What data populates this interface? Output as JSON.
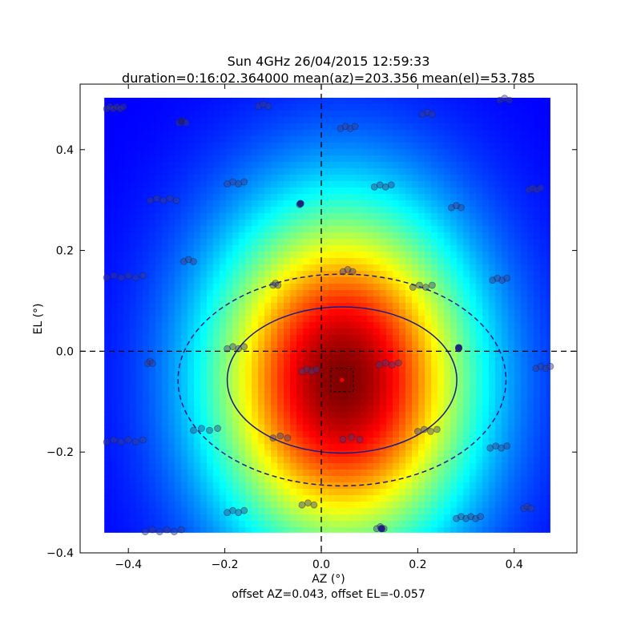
{
  "chart_data": {
    "type": "heatmap",
    "title_line1": "Sun 4GHz 26/04/2015 12:59:33",
    "title_line2": "duration=0:16:02.364000 mean(az)=203.356 mean(el)=53.785",
    "xlabel": "AZ (°)",
    "ylabel": "EL (°)",
    "footer": "offset AZ=0.043, offset EL=-0.057",
    "xlim": [
      -0.5,
      0.53
    ],
    "ylim": [
      -0.4,
      0.53
    ],
    "xticks": [
      -0.4,
      -0.2,
      0.0,
      0.2,
      0.4
    ],
    "xtick_labels": [
      "−0.4",
      "−0.2",
      "0.0",
      "0.2",
      "0.4"
    ],
    "yticks": [
      -0.4,
      -0.2,
      0.0,
      0.2,
      0.4
    ],
    "ytick_labels": [
      "−0.4",
      "−0.2",
      "0.0",
      "0.2",
      "0.4"
    ],
    "map_extent": {
      "x": [
        -0.45,
        0.475
      ],
      "y": [
        -0.36,
        0.503
      ]
    },
    "center": {
      "az": 0.043,
      "el": -0.057
    },
    "sigma": {
      "az": 0.19,
      "el": 0.24
    },
    "ellipse_inner": {
      "cx": 0.043,
      "cy": -0.057,
      "rx": 0.238,
      "ry": 0.145
    },
    "ellipse_outer": {
      "cx": 0.043,
      "cy": -0.057,
      "rx": 0.34,
      "ry": 0.21
    },
    "center_box": {
      "x": [
        0.02,
        0.066
      ],
      "y": [
        -0.08,
        -0.034
      ]
    },
    "colors": {
      "outline": "#1a1a8c",
      "marker": "#ff0000",
      "point": "#3a3a8a"
    },
    "scan_points": [
      {
        "x0": -0.445,
        "x1": -0.41,
        "y": 0.483,
        "n": 6
      },
      {
        "x0": -0.295,
        "x1": -0.28,
        "y": 0.455,
        "n": 3
      },
      {
        "x0": -0.13,
        "x1": -0.11,
        "y": 0.488,
        "n": 3
      },
      {
        "x0": 0.04,
        "x1": 0.07,
        "y": 0.444,
        "n": 4
      },
      {
        "x0": 0.21,
        "x1": 0.23,
        "y": 0.472,
        "n": 3
      },
      {
        "x0": 0.37,
        "x1": 0.39,
        "y": 0.5,
        "n": 3
      },
      {
        "x0": -0.355,
        "x1": -0.3,
        "y": 0.301,
        "n": 5
      },
      {
        "x0": -0.195,
        "x1": -0.16,
        "y": 0.334,
        "n": 4
      },
      {
        "x0": -0.045,
        "x1": -0.04,
        "y": 0.293,
        "n": 1
      },
      {
        "x0": 0.11,
        "x1": 0.145,
        "y": 0.328,
        "n": 4
      },
      {
        "x0": 0.27,
        "x1": 0.29,
        "y": 0.287,
        "n": 3
      },
      {
        "x0": 0.43,
        "x1": 0.455,
        "y": 0.322,
        "n": 4
      },
      {
        "x0": -0.445,
        "x1": -0.37,
        "y": 0.148,
        "n": 6
      },
      {
        "x0": -0.285,
        "x1": -0.265,
        "y": 0.18,
        "n": 3
      },
      {
        "x0": -0.1,
        "x1": -0.09,
        "y": 0.133,
        "n": 3
      },
      {
        "x0": 0.045,
        "x1": 0.065,
        "y": 0.16,
        "n": 3
      },
      {
        "x0": 0.19,
        "x1": 0.23,
        "y": 0.129,
        "n": 4
      },
      {
        "x0": 0.355,
        "x1": 0.385,
        "y": 0.143,
        "n": 4
      },
      {
        "x0": -0.195,
        "x1": -0.16,
        "y": 0.007,
        "n": 4
      },
      {
        "x0": 0.285,
        "x1": 0.285,
        "y": 0.007,
        "n": 1
      },
      {
        "x0": -0.36,
        "x1": -0.35,
        "y": -0.022,
        "n": 3
      },
      {
        "x0": -0.04,
        "x1": -0.01,
        "y": -0.038,
        "n": 4
      },
      {
        "x0": 0.12,
        "x1": 0.16,
        "y": -0.025,
        "n": 4
      },
      {
        "x0": 0.445,
        "x1": 0.475,
        "y": -0.032,
        "n": 4
      },
      {
        "x0": -0.265,
        "x1": -0.215,
        "y": -0.155,
        "n": 4
      },
      {
        "x0": -0.1,
        "x1": -0.07,
        "y": -0.17,
        "n": 3
      },
      {
        "x0": 0.045,
        "x1": 0.08,
        "y": -0.173,
        "n": 3
      },
      {
        "x0": 0.2,
        "x1": 0.24,
        "y": -0.157,
        "n": 4
      },
      {
        "x0": -0.445,
        "x1": -0.37,
        "y": -0.178,
        "n": 6
      },
      {
        "x0": 0.35,
        "x1": 0.385,
        "y": -0.19,
        "n": 4
      },
      {
        "x0": -0.195,
        "x1": -0.16,
        "y": -0.318,
        "n": 4
      },
      {
        "x0": -0.04,
        "x1": -0.015,
        "y": -0.303,
        "n": 3
      },
      {
        "x0": 0.115,
        "x1": 0.13,
        "y": -0.35,
        "n": 3
      },
      {
        "x0": 0.28,
        "x1": 0.33,
        "y": -0.33,
        "n": 6
      },
      {
        "x0": 0.42,
        "x1": 0.435,
        "y": -0.31,
        "n": 3
      },
      {
        "x0": -0.365,
        "x1": -0.29,
        "y": -0.356,
        "n": 6
      }
    ],
    "highlight_points": [
      {
        "x": -0.29,
        "y": 0.456
      },
      {
        "x": -0.043,
        "y": 0.293
      },
      {
        "x": 0.285,
        "y": 0.007
      },
      {
        "x": 0.125,
        "y": -0.352
      }
    ]
  }
}
